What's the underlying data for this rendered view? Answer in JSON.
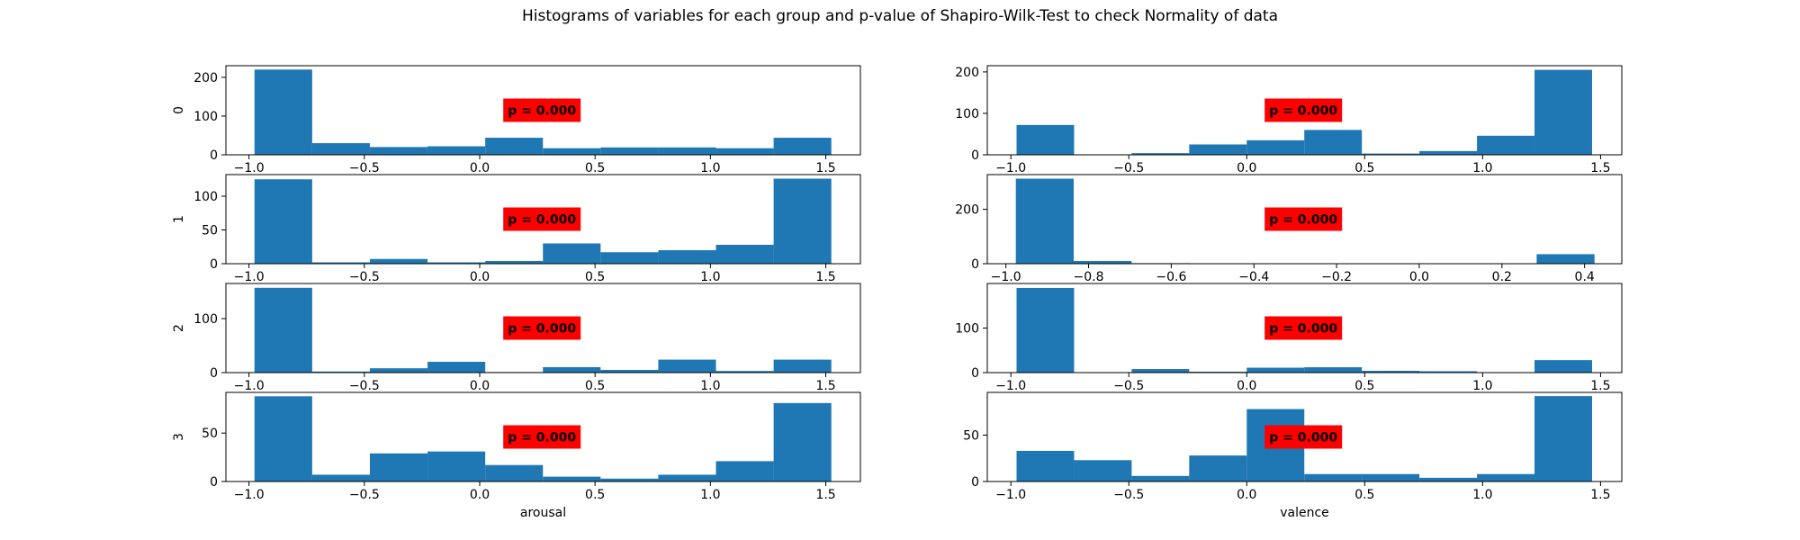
{
  "figure": {
    "title": "Histograms of variables for each group and p-value of Shapiro-Wilk-Test to check Normality of data"
  },
  "colors": {
    "bar": "#1f77b4",
    "pbox": "#ff0000",
    "axis": "#000000"
  },
  "chart_data": [
    {
      "type": "bar",
      "variable": "arousal",
      "group": "0",
      "ylabel": "0",
      "xlabel": "",
      "bin_edges": [
        -0.976,
        -0.726,
        -0.476,
        -0.226,
        0.024,
        0.274,
        0.524,
        0.774,
        1.024,
        1.274,
        1.524
      ],
      "values": [
        220,
        30,
        20,
        22,
        44,
        17,
        19,
        19,
        17,
        44
      ],
      "xlim": [
        -1.1,
        1.65
      ],
      "ylim": [
        0,
        230
      ],
      "xticks": [
        -1.0,
        -0.5,
        0.0,
        0.5,
        1.0,
        1.5
      ],
      "xtick_labels": [
        "−1.0",
        "−0.5",
        "0.0",
        "0.5",
        "1.0",
        "1.5"
      ],
      "yticks": [
        0,
        100,
        200
      ],
      "ytick_labels": [
        "0",
        "100",
        "200"
      ],
      "annotation": "p = 0.000",
      "annotation_pos_frac": [
        0.44,
        0.5
      ]
    },
    {
      "type": "bar",
      "variable": "valence",
      "group": "0",
      "ylabel": "",
      "xlabel": "",
      "bin_edges": [
        -0.976,
        -0.732,
        -0.488,
        -0.244,
        0.0,
        0.244,
        0.488,
        0.732,
        0.976,
        1.22,
        1.464
      ],
      "values": [
        72,
        0,
        4,
        25,
        35,
        60,
        3,
        9,
        46,
        205
      ],
      "xlim": [
        -1.1,
        1.59
      ],
      "ylim": [
        0,
        215
      ],
      "xticks": [
        -1.0,
        -0.5,
        0.0,
        0.5,
        1.0,
        1.5
      ],
      "xtick_labels": [
        "−1.0",
        "−0.5",
        "0.0",
        "0.5",
        "1.0",
        "1.5"
      ],
      "yticks": [
        0,
        100,
        200
      ],
      "ytick_labels": [
        "0",
        "100",
        "200"
      ],
      "annotation": "p = 0.000",
      "annotation_pos_frac": [
        0.44,
        0.5
      ]
    },
    {
      "type": "bar",
      "variable": "arousal",
      "group": "1",
      "ylabel": "1",
      "xlabel": "",
      "bin_edges": [
        -0.976,
        -0.726,
        -0.476,
        -0.226,
        0.024,
        0.274,
        0.524,
        0.774,
        1.024,
        1.274,
        1.524
      ],
      "values": [
        125,
        2,
        7,
        2,
        4,
        30,
        17,
        20,
        28,
        126
      ],
      "xlim": [
        -1.1,
        1.65
      ],
      "ylim": [
        0,
        132
      ],
      "xticks": [
        -1.0,
        -0.5,
        0.0,
        0.5,
        1.0,
        1.5
      ],
      "xtick_labels": [
        "−1.0",
        "−0.5",
        "0.0",
        "0.5",
        "1.0",
        "1.5"
      ],
      "yticks": [
        0,
        50,
        100
      ],
      "ytick_labels": [
        "0",
        "50",
        "100"
      ],
      "annotation": "p = 0.000",
      "annotation_pos_frac": [
        0.44,
        0.5
      ]
    },
    {
      "type": "bar",
      "variable": "valence",
      "group": "1",
      "ylabel": "",
      "xlabel": "",
      "bin_edges": [
        -0.976,
        -0.836,
        -0.696,
        -0.556,
        -0.416,
        -0.276,
        -0.136,
        0.004,
        0.144,
        0.284,
        0.424
      ],
      "values": [
        313,
        10,
        2,
        1,
        0,
        0,
        0,
        0,
        0,
        35
      ],
      "xlim": [
        -1.045,
        0.49
      ],
      "ylim": [
        0,
        328
      ],
      "xticks": [
        -1.0,
        -0.8,
        -0.6,
        -0.4,
        -0.2,
        0.0,
        0.2,
        0.4
      ],
      "xtick_labels": [
        "−1.0",
        "−0.8",
        "−0.6",
        "−0.4",
        "−0.2",
        "0.0",
        "0.2",
        "0.4"
      ],
      "yticks": [
        0,
        200
      ],
      "ytick_labels": [
        "0",
        "200"
      ],
      "annotation": "p = 0.000",
      "annotation_pos_frac": [
        0.44,
        0.5
      ]
    },
    {
      "type": "bar",
      "variable": "arousal",
      "group": "2",
      "ylabel": "2",
      "xlabel": "",
      "bin_edges": [
        -0.976,
        -0.726,
        -0.476,
        -0.226,
        0.024,
        0.274,
        0.524,
        0.774,
        1.024,
        1.274,
        1.524
      ],
      "values": [
        157,
        2,
        8,
        20,
        1,
        10,
        5,
        24,
        3,
        24
      ],
      "xlim": [
        -1.1,
        1.65
      ],
      "ylim": [
        0,
        165
      ],
      "xticks": [
        -1.0,
        -0.5,
        0.0,
        0.5,
        1.0,
        1.5
      ],
      "xtick_labels": [
        "−1.0",
        "−0.5",
        "0.0",
        "0.5",
        "1.0",
        "1.5"
      ],
      "yticks": [
        0,
        100
      ],
      "ytick_labels": [
        "0",
        "100"
      ],
      "annotation": "p = 0.000",
      "annotation_pos_frac": [
        0.44,
        0.5
      ]
    },
    {
      "type": "bar",
      "variable": "valence",
      "group": "2",
      "ylabel": "",
      "xlabel": "",
      "bin_edges": [
        -0.976,
        -0.732,
        -0.488,
        -0.244,
        0.0,
        0.244,
        0.488,
        0.732,
        0.976,
        1.22,
        1.464
      ],
      "values": [
        190,
        0,
        8,
        2,
        11,
        12,
        4,
        3,
        1,
        28
      ],
      "xlim": [
        -1.1,
        1.59
      ],
      "ylim": [
        0,
        200
      ],
      "xticks": [
        -1.0,
        -0.5,
        0.0,
        0.5,
        1.0,
        1.5
      ],
      "xtick_labels": [
        "−1.0",
        "−0.5",
        "0.0",
        "0.5",
        "1.0",
        "1.5"
      ],
      "yticks": [
        0,
        100
      ],
      "ytick_labels": [
        "0",
        "100"
      ],
      "annotation": "p = 0.000",
      "annotation_pos_frac": [
        0.44,
        0.5
      ]
    },
    {
      "type": "bar",
      "variable": "arousal",
      "group": "3",
      "ylabel": "3",
      "xlabel": "arousal",
      "bin_edges": [
        -0.976,
        -0.726,
        -0.476,
        -0.226,
        0.024,
        0.274,
        0.524,
        0.774,
        1.024,
        1.274,
        1.524
      ],
      "values": [
        88,
        7,
        29,
        31,
        17,
        5,
        3,
        7,
        21,
        81
      ],
      "xlim": [
        -1.1,
        1.65
      ],
      "ylim": [
        0,
        92
      ],
      "xticks": [
        -1.0,
        -0.5,
        0.0,
        0.5,
        1.0,
        1.5
      ],
      "xtick_labels": [
        "−1.0",
        "−0.5",
        "0.0",
        "0.5",
        "1.0",
        "1.5"
      ],
      "yticks": [
        0,
        50
      ],
      "ytick_labels": [
        "0",
        "50"
      ],
      "annotation": "p = 0.000",
      "annotation_pos_frac": [
        0.44,
        0.5
      ]
    },
    {
      "type": "bar",
      "variable": "valence",
      "group": "3",
      "ylabel": "",
      "xlabel": "valence",
      "bin_edges": [
        -0.976,
        -0.732,
        -0.488,
        -0.244,
        0.0,
        0.244,
        0.488,
        0.732,
        0.976,
        1.22,
        1.464
      ],
      "values": [
        33,
        23,
        6,
        28,
        78,
        8,
        8,
        4,
        8,
        92
      ],
      "xlim": [
        -1.1,
        1.59
      ],
      "ylim": [
        0,
        96
      ],
      "xticks": [
        -1.0,
        -0.5,
        0.0,
        0.5,
        1.0,
        1.5
      ],
      "xtick_labels": [
        "−1.0",
        "−0.5",
        "0.0",
        "0.5",
        "1.0",
        "1.5"
      ],
      "yticks": [
        0,
        50
      ],
      "ytick_labels": [
        "0",
        "50"
      ],
      "annotation": "p = 0.000",
      "annotation_pos_frac": [
        0.44,
        0.5
      ]
    }
  ]
}
